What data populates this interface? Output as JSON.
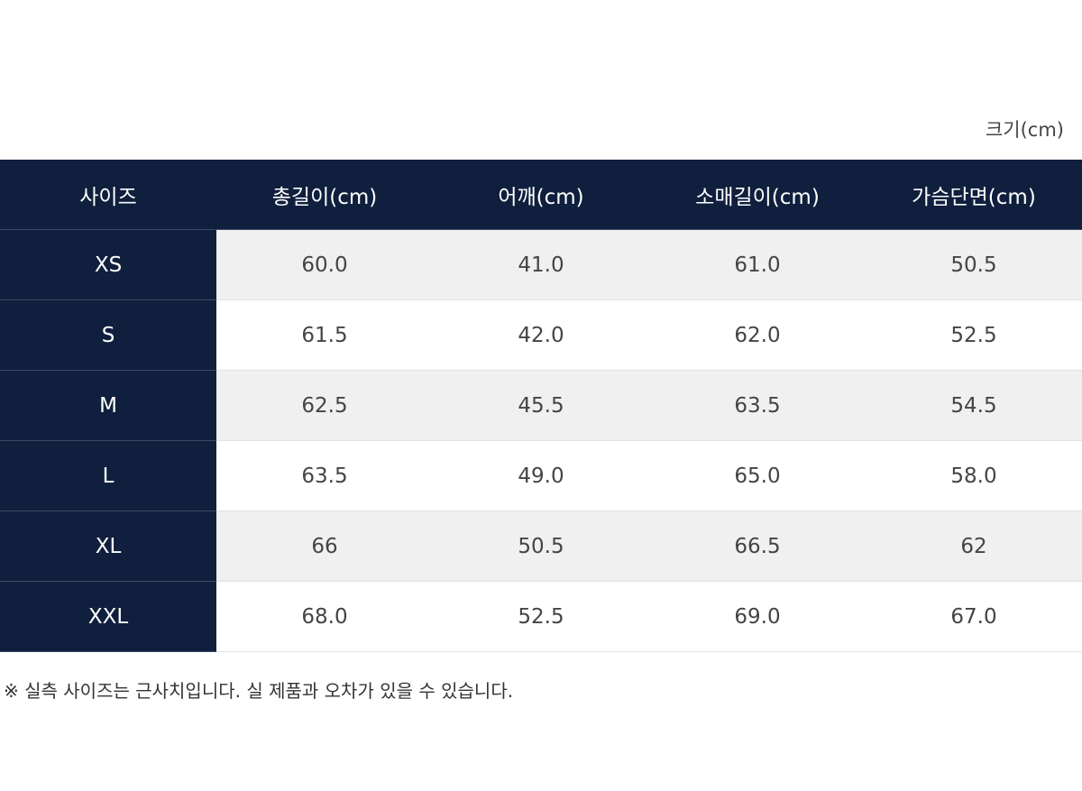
{
  "unit_label": "크기(cm)",
  "table": {
    "headers": [
      "사이즈",
      "총길이(cm)",
      "어깨(cm)",
      "소매길이(cm)",
      "가슴단면(cm)"
    ],
    "rows": [
      {
        "size": "XS",
        "values": [
          "60.0",
          "41.0",
          "61.0",
          "50.5"
        ]
      },
      {
        "size": "S",
        "values": [
          "61.5",
          "42.0",
          "62.0",
          "52.5"
        ]
      },
      {
        "size": "M",
        "values": [
          "62.5",
          "45.5",
          "63.5",
          "54.5"
        ]
      },
      {
        "size": "L",
        "values": [
          "63.5",
          "49.0",
          "65.0",
          "58.0"
        ]
      },
      {
        "size": "XL",
        "values": [
          "66",
          "50.5",
          "66.5",
          "62"
        ]
      },
      {
        "size": "XXL",
        "values": [
          "68.0",
          "52.5",
          "69.0",
          "67.0"
        ]
      }
    ]
  },
  "footnote": "※ 실측 사이즈는 근사치입니다. 실 제품과 오차가 있을 수 있습니다.",
  "colors": {
    "header_bg": "#0f1f3d",
    "row_alt_bg": "#f0f0f0"
  }
}
